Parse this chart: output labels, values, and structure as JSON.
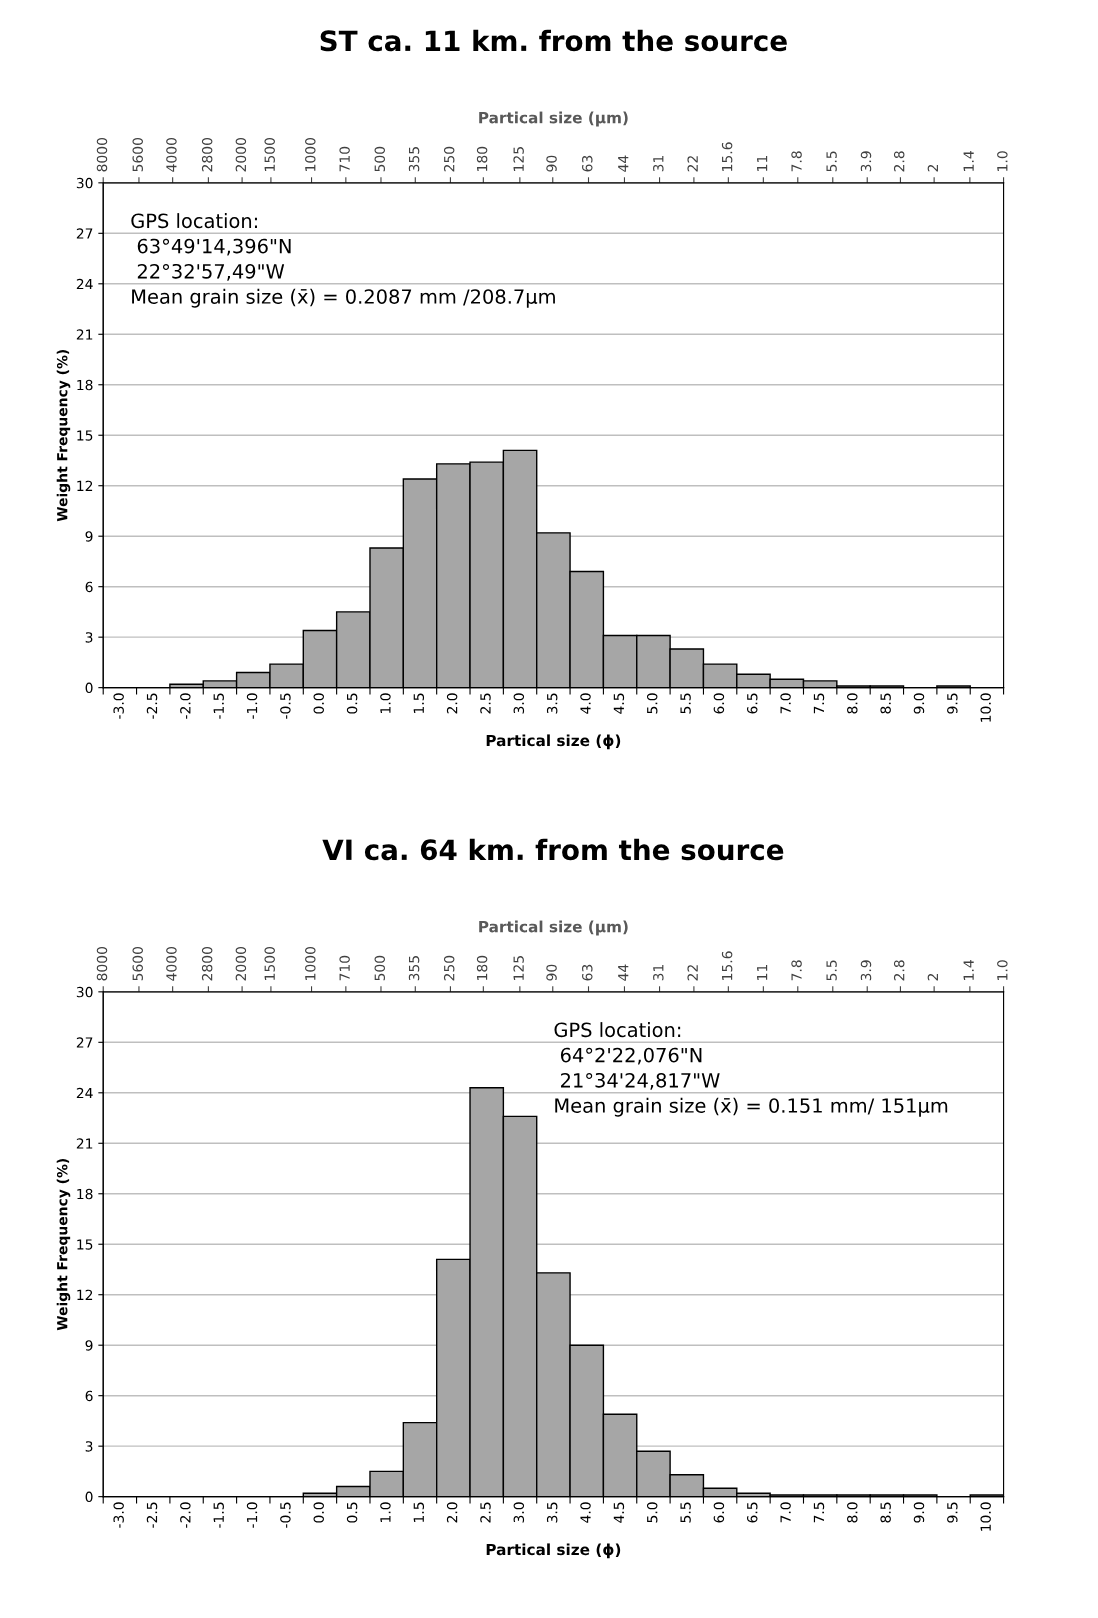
{
  "chart_data": [
    {
      "type": "bar",
      "title": "ST ca. 11 km. from the source",
      "xlabel": "Partical size (ϕ)",
      "ylabel": "Weight Frequency (%)",
      "x2label": "Partical size (µm)",
      "categories": [
        "-3.0",
        "-2.5",
        "-2.0",
        "-1.5",
        "-1.0",
        "-0.5",
        "0.0",
        "0.5",
        "1.0",
        "1.5",
        "2.0",
        "2.5",
        "3.0",
        "3.5",
        "4.0",
        "4.5",
        "5.0",
        "5.5",
        "6.0",
        "6.5",
        "7.0",
        "7.5",
        "8.0",
        "8.5",
        "9.0",
        "9.5",
        "10.0"
      ],
      "values": [
        0,
        0,
        0.2,
        0.4,
        0.9,
        1.4,
        3.4,
        4.5,
        8.3,
        12.4,
        13.3,
        13.4,
        14.1,
        9.2,
        6.9,
        3.1,
        3.1,
        2.3,
        1.4,
        0.8,
        0.5,
        0.4,
        0.1,
        0.1,
        0,
        0.1,
        0
      ],
      "color": "#a6a6a6",
      "ylim": [
        0,
        30
      ],
      "yticks": [
        0,
        3,
        6,
        9,
        12,
        15,
        18,
        21,
        24,
        27,
        30
      ],
      "grid": "y",
      "legend": false,
      "log": "x2",
      "x2lim": [
        8000,
        1.0
      ],
      "x2ticks": [
        8000,
        5600,
        4000,
        2800,
        2000,
        1500,
        1000,
        710,
        500,
        355,
        250,
        180,
        125,
        90,
        63,
        44,
        31,
        22,
        15.6,
        11,
        7.8,
        5.5,
        3.9,
        2.8,
        2,
        1.4,
        {
          "value": 1.0,
          "label": "1.0"
        }
      ],
      "annotations": [
        "GPS location:",
        " 63°49'14,396\"N",
        " 22°32'57,49\"W",
        "Mean grain size (x̄) = 0.2087 mm /208.7µm"
      ]
    },
    {
      "type": "bar",
      "title": "VI ca. 64 km. from the source",
      "xlabel": "Partical size (ϕ)",
      "ylabel": "Weight Frequency (%)",
      "x2label": "Partical size (µm)",
      "categories": [
        "-3.0",
        "-2.5",
        "-2.0",
        "-1.5",
        "-1.0",
        "-0.5",
        "0.0",
        "0.5",
        "1.0",
        "1.5",
        "2.0",
        "2.5",
        "3.0",
        "3.5",
        "4.0",
        "4.5",
        "5.0",
        "5.5",
        "6.0",
        "6.5",
        "7.0",
        "7.5",
        "8.0",
        "8.5",
        "9.0",
        "9.5",
        "10.0"
      ],
      "values": [
        0,
        0,
        0,
        0,
        0,
        0,
        0.2,
        0.6,
        1.5,
        4.4,
        14.1,
        24.3,
        22.6,
        13.3,
        9.0,
        4.9,
        2.7,
        1.3,
        0.5,
        0.2,
        0.1,
        0.1,
        0.1,
        0.1,
        0.1,
        0,
        0.1
      ],
      "color": "#a6a6a6",
      "ylim": [
        0,
        30
      ],
      "yticks": [
        0,
        3,
        6,
        9,
        12,
        15,
        18,
        21,
        24,
        27,
        30
      ],
      "grid": "y",
      "legend": false,
      "log": "x2",
      "x2lim": [
        8000,
        1.0
      ],
      "x2ticks": [
        8000,
        5600,
        4000,
        2800,
        2000,
        1500,
        1000,
        710,
        500,
        355,
        250,
        180,
        125,
        90,
        63,
        44,
        31,
        22,
        15.6,
        11,
        7.8,
        5.5,
        3.9,
        2.8,
        2,
        1.4,
        {
          "value": 1.0,
          "label": "1.0"
        }
      ],
      "annotations": [
        "GPS location:",
        " 64°2'22,076\"N",
        " 21°34'24,817\"W",
        "Mean grain size (x̄) = 0.151 mm/ 151µm"
      ]
    }
  ]
}
